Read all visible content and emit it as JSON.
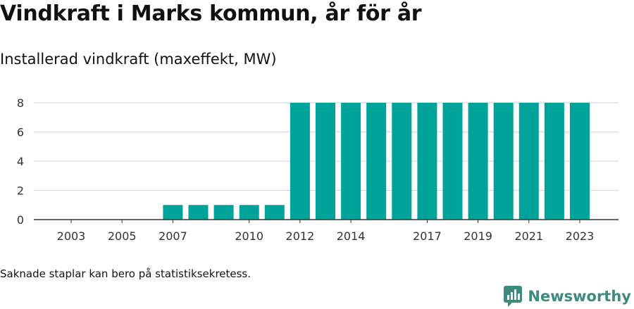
{
  "title": "Vindkraft i Marks kommun, år för år",
  "subtitle": "Installerad vindkraft (maxeffekt, MW)",
  "footnote": "Saknade staplar kan bero på statistiksekretess.",
  "brand": {
    "name": "Newsworthy",
    "icon": "newsworthy-logo-icon",
    "color": "#3d8b7d"
  },
  "chart_data": {
    "type": "bar",
    "categories": [
      "2003",
      "2004",
      "2005",
      "2006",
      "2007",
      "2008",
      "2009",
      "2010",
      "2011",
      "2012",
      "2013",
      "2014",
      "2015",
      "2016",
      "2017",
      "2018",
      "2019",
      "2020",
      "2021",
      "2022",
      "2023"
    ],
    "values": [
      null,
      null,
      null,
      null,
      1,
      1,
      1,
      1,
      1,
      8,
      8,
      8,
      8,
      8,
      8,
      8,
      8,
      8,
      8,
      8,
      8
    ],
    "x_tick_labels": [
      "2003",
      "2005",
      "2007",
      "2010",
      "2012",
      "2014",
      "2017",
      "2019",
      "2021",
      "2023"
    ],
    "y_ticks": [
      0,
      2,
      4,
      6,
      8
    ],
    "ylim": [
      0,
      8
    ],
    "grid": true,
    "bar_color": "#00a39a",
    "xlabel": "",
    "ylabel": ""
  }
}
